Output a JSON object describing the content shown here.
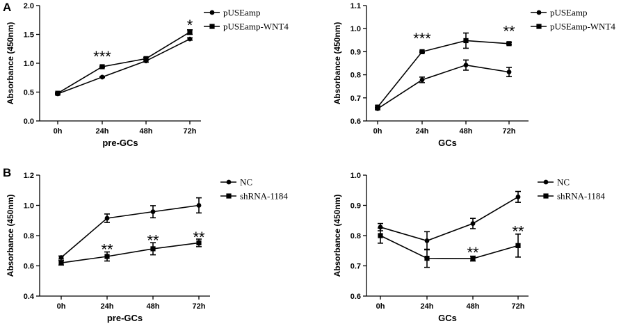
{
  "panel_labels": [
    "A",
    "B"
  ],
  "chart_data": [
    {
      "type": "line",
      "panel": "A",
      "xlabel": "pre-GCs",
      "ylabel": "Absorbance (450nm)",
      "categories": [
        "0h",
        "24h",
        "48h",
        "72h"
      ],
      "ylim": [
        0.0,
        2.0
      ],
      "yticks": [
        "0.0",
        "0.5",
        "1.0",
        "1.5",
        "2.0"
      ],
      "series": [
        {
          "name": "pUSEamp",
          "marker": "circle",
          "values": [
            0.47,
            0.76,
            1.04,
            1.42
          ],
          "err": [
            0.01,
            0.01,
            0.02,
            0.02
          ]
        },
        {
          "name": "pUSEamp-WNT4",
          "marker": "square",
          "values": [
            0.48,
            0.94,
            1.08,
            1.54
          ],
          "err": [
            0.01,
            0.01,
            0.02,
            0.04
          ]
        }
      ],
      "annotations": [
        {
          "x": "24h",
          "text": "***",
          "y": 1.12
        },
        {
          "x": "72h",
          "text": "*",
          "y": 1.66
        }
      ]
    },
    {
      "type": "line",
      "panel": "A",
      "xlabel": "GCs",
      "ylabel": "Absorbance (450nm)",
      "categories": [
        "0h",
        "24h",
        "48h",
        "72h"
      ],
      "ylim": [
        0.6,
        1.1
      ],
      "yticks": [
        "0.6",
        "0.7",
        "0.8",
        "0.9",
        "1.0",
        "1.1"
      ],
      "series": [
        {
          "name": "pUSEamp",
          "marker": "circle",
          "values": [
            0.653,
            0.778,
            0.842,
            0.812
          ],
          "err": [
            0.005,
            0.012,
            0.022,
            0.02
          ]
        },
        {
          "name": "pUSEamp-WNT4",
          "marker": "square",
          "values": [
            0.66,
            0.9,
            0.948,
            0.935
          ],
          "err": [
            0.005,
            0.003,
            0.033,
            0.005
          ]
        }
      ],
      "annotations": [
        {
          "x": "24h",
          "text": "***",
          "y": 0.958
        },
        {
          "x": "72h",
          "text": "**",
          "y": 0.99
        }
      ]
    },
    {
      "type": "line",
      "panel": "B",
      "xlabel": "pre-GCs",
      "ylabel": "Absorbance (450nm)",
      "categories": [
        "0h",
        "24h",
        "48h",
        "72h"
      ],
      "ylim": [
        0.4,
        1.2
      ],
      "yticks": [
        "0.4",
        "0.6",
        "0.8",
        "1.0",
        "1.2"
      ],
      "series": [
        {
          "name": "NC",
          "marker": "circle",
          "values": [
            0.655,
            0.915,
            0.958,
            1.0
          ],
          "err": [
            0.01,
            0.028,
            0.04,
            0.05
          ]
        },
        {
          "name": "shRNA-1184",
          "marker": "square",
          "values": [
            0.62,
            0.662,
            0.713,
            0.752
          ],
          "err": [
            0.015,
            0.03,
            0.04,
            0.025
          ]
        }
      ],
      "annotations": [
        {
          "x": "24h",
          "text": "**",
          "y": 0.71
        },
        {
          "x": "48h",
          "text": "**",
          "y": 0.77
        },
        {
          "x": "72h",
          "text": "**",
          "y": 0.79
        }
      ]
    },
    {
      "type": "line",
      "panel": "B",
      "xlabel": "GCs",
      "ylabel": "Absorbance (450nm)",
      "categories": [
        "0h",
        "24h",
        "48h",
        "72h"
      ],
      "ylim": [
        0.6,
        1.0
      ],
      "yticks": [
        "0.6",
        "0.7",
        "0.8",
        "0.9",
        "1.0"
      ],
      "series": [
        {
          "name": "NC",
          "marker": "circle",
          "values": [
            0.828,
            0.783,
            0.84,
            0.928
          ],
          "err": [
            0.012,
            0.03,
            0.017,
            0.018
          ]
        },
        {
          "name": "shRNA-1184",
          "marker": "square",
          "values": [
            0.8,
            0.725,
            0.724,
            0.767
          ],
          "err": [
            0.025,
            0.03,
            0.008,
            0.038
          ]
        }
      ],
      "annotations": [
        {
          "x": "48h",
          "text": "**",
          "y": 0.745
        },
        {
          "x": "72h",
          "text": "**",
          "y": 0.815
        }
      ]
    }
  ]
}
